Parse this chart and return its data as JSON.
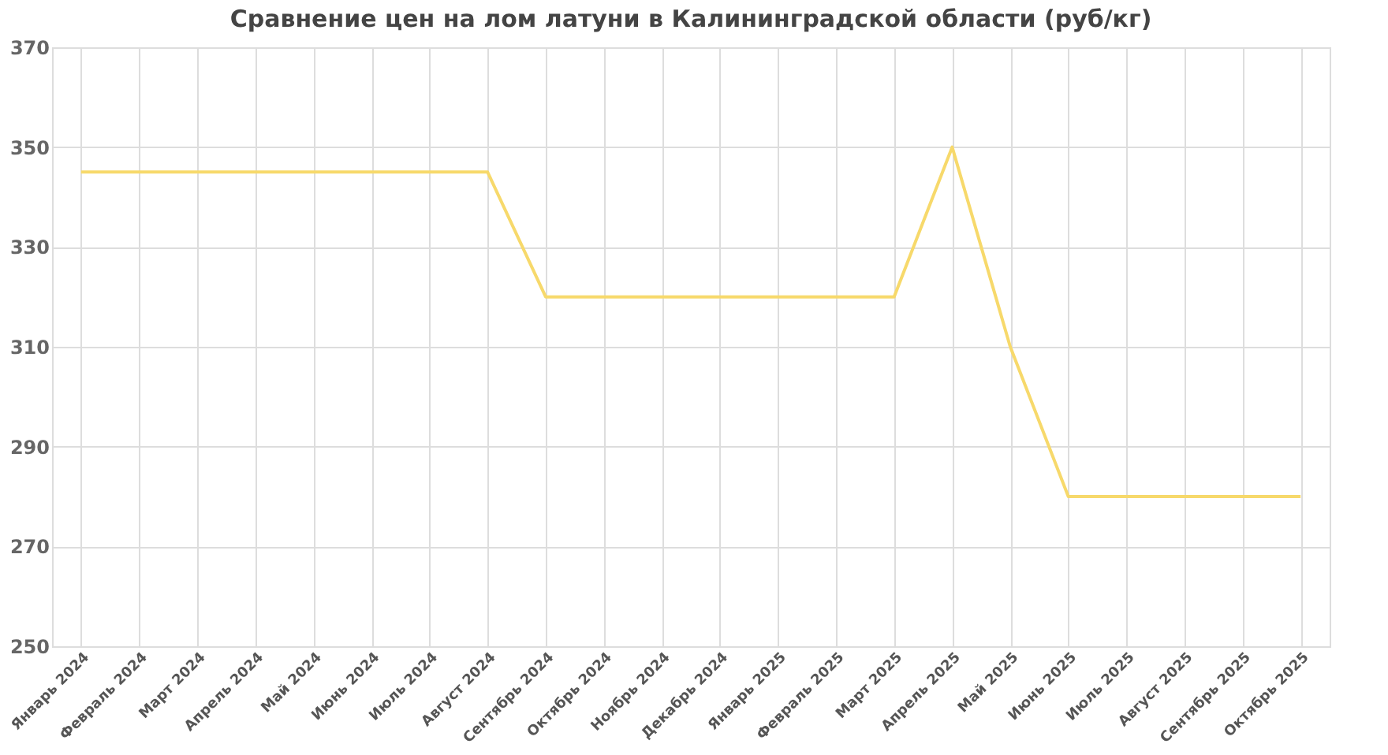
{
  "chart_data": {
    "type": "line",
    "title": "Сравнение цен на лом латуни в Калининградской области (руб/кг)",
    "categories": [
      "Январь 2024",
      "Февраль 2024",
      "Март 2024",
      "Апрель 2024",
      "Май 2024",
      "Июнь 2024",
      "Июль 2024",
      "Август 2024",
      "Сентябрь 2024",
      "Октябрь 2024",
      "Ноябрь 2024",
      "Декабрь 2024",
      "Январь 2025",
      "Февраль 2025",
      "Март 2025",
      "Апрель 2025",
      "Май 2025",
      "Июнь 2025",
      "Июль 2025",
      "Август 2025",
      "Сентябрь 2025",
      "Октябрь 2025"
    ],
    "series": [
      {
        "color": "#f7d96b",
        "values": [
          345,
          345,
          345,
          345,
          345,
          345,
          345,
          345,
          320,
          320,
          320,
          320,
          320,
          320,
          320,
          350,
          310,
          280,
          280,
          280,
          280,
          280
        ]
      }
    ],
    "ylim": [
      250,
      370
    ],
    "yticks": [
      250,
      270,
      290,
      310,
      330,
      350,
      370
    ],
    "grid": true,
    "legend": false,
    "marker": "none",
    "line_style": "solid"
  }
}
